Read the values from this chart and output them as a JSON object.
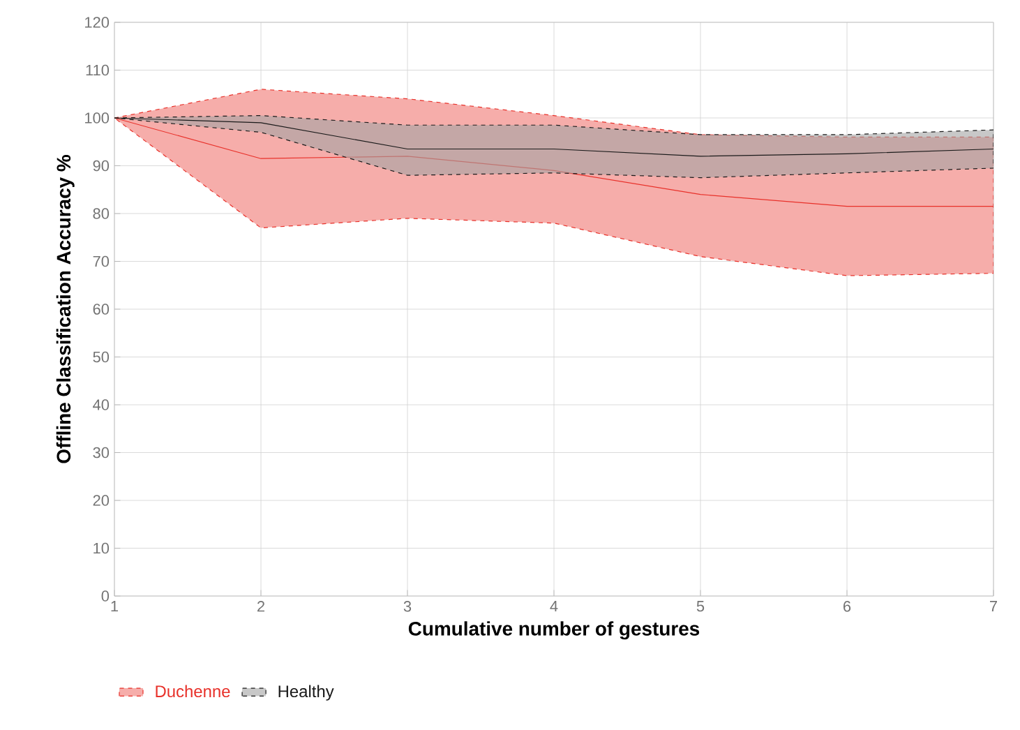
{
  "chart_data": {
    "type": "line",
    "xlabel": "Cumulative number of gestures",
    "ylabel": "Offline Classification Accuracy %",
    "x": [
      1,
      2,
      3,
      4,
      5,
      6,
      7
    ],
    "xlim": [
      1,
      7
    ],
    "xticks": [
      1,
      2,
      3,
      4,
      5,
      6,
      7
    ],
    "ylim": [
      0,
      120
    ],
    "yticks": [
      0,
      10,
      20,
      30,
      40,
      50,
      60,
      70,
      80,
      90,
      100,
      110,
      120
    ],
    "grid": true,
    "legend": "bottom left",
    "series": [
      {
        "name": "Duchenne",
        "color": "#e8312a",
        "values": [
          100,
          91.5,
          92,
          89,
          84,
          81.5,
          81.5
        ],
        "lower": [
          100,
          77,
          79,
          78,
          71,
          67,
          67.5
        ],
        "upper": [
          100,
          106,
          104,
          100.5,
          96.5,
          96,
          96
        ]
      },
      {
        "name": "Healthy",
        "color": "#1a1a1a",
        "values": [
          100,
          99,
          93.5,
          93.5,
          92,
          92.5,
          93.5
        ],
        "lower": [
          100,
          97,
          88,
          88.5,
          87.5,
          88.5,
          89.5
        ],
        "upper": [
          100,
          100.5,
          98.5,
          98.5,
          96.5,
          96.5,
          97.5
        ]
      }
    ]
  }
}
